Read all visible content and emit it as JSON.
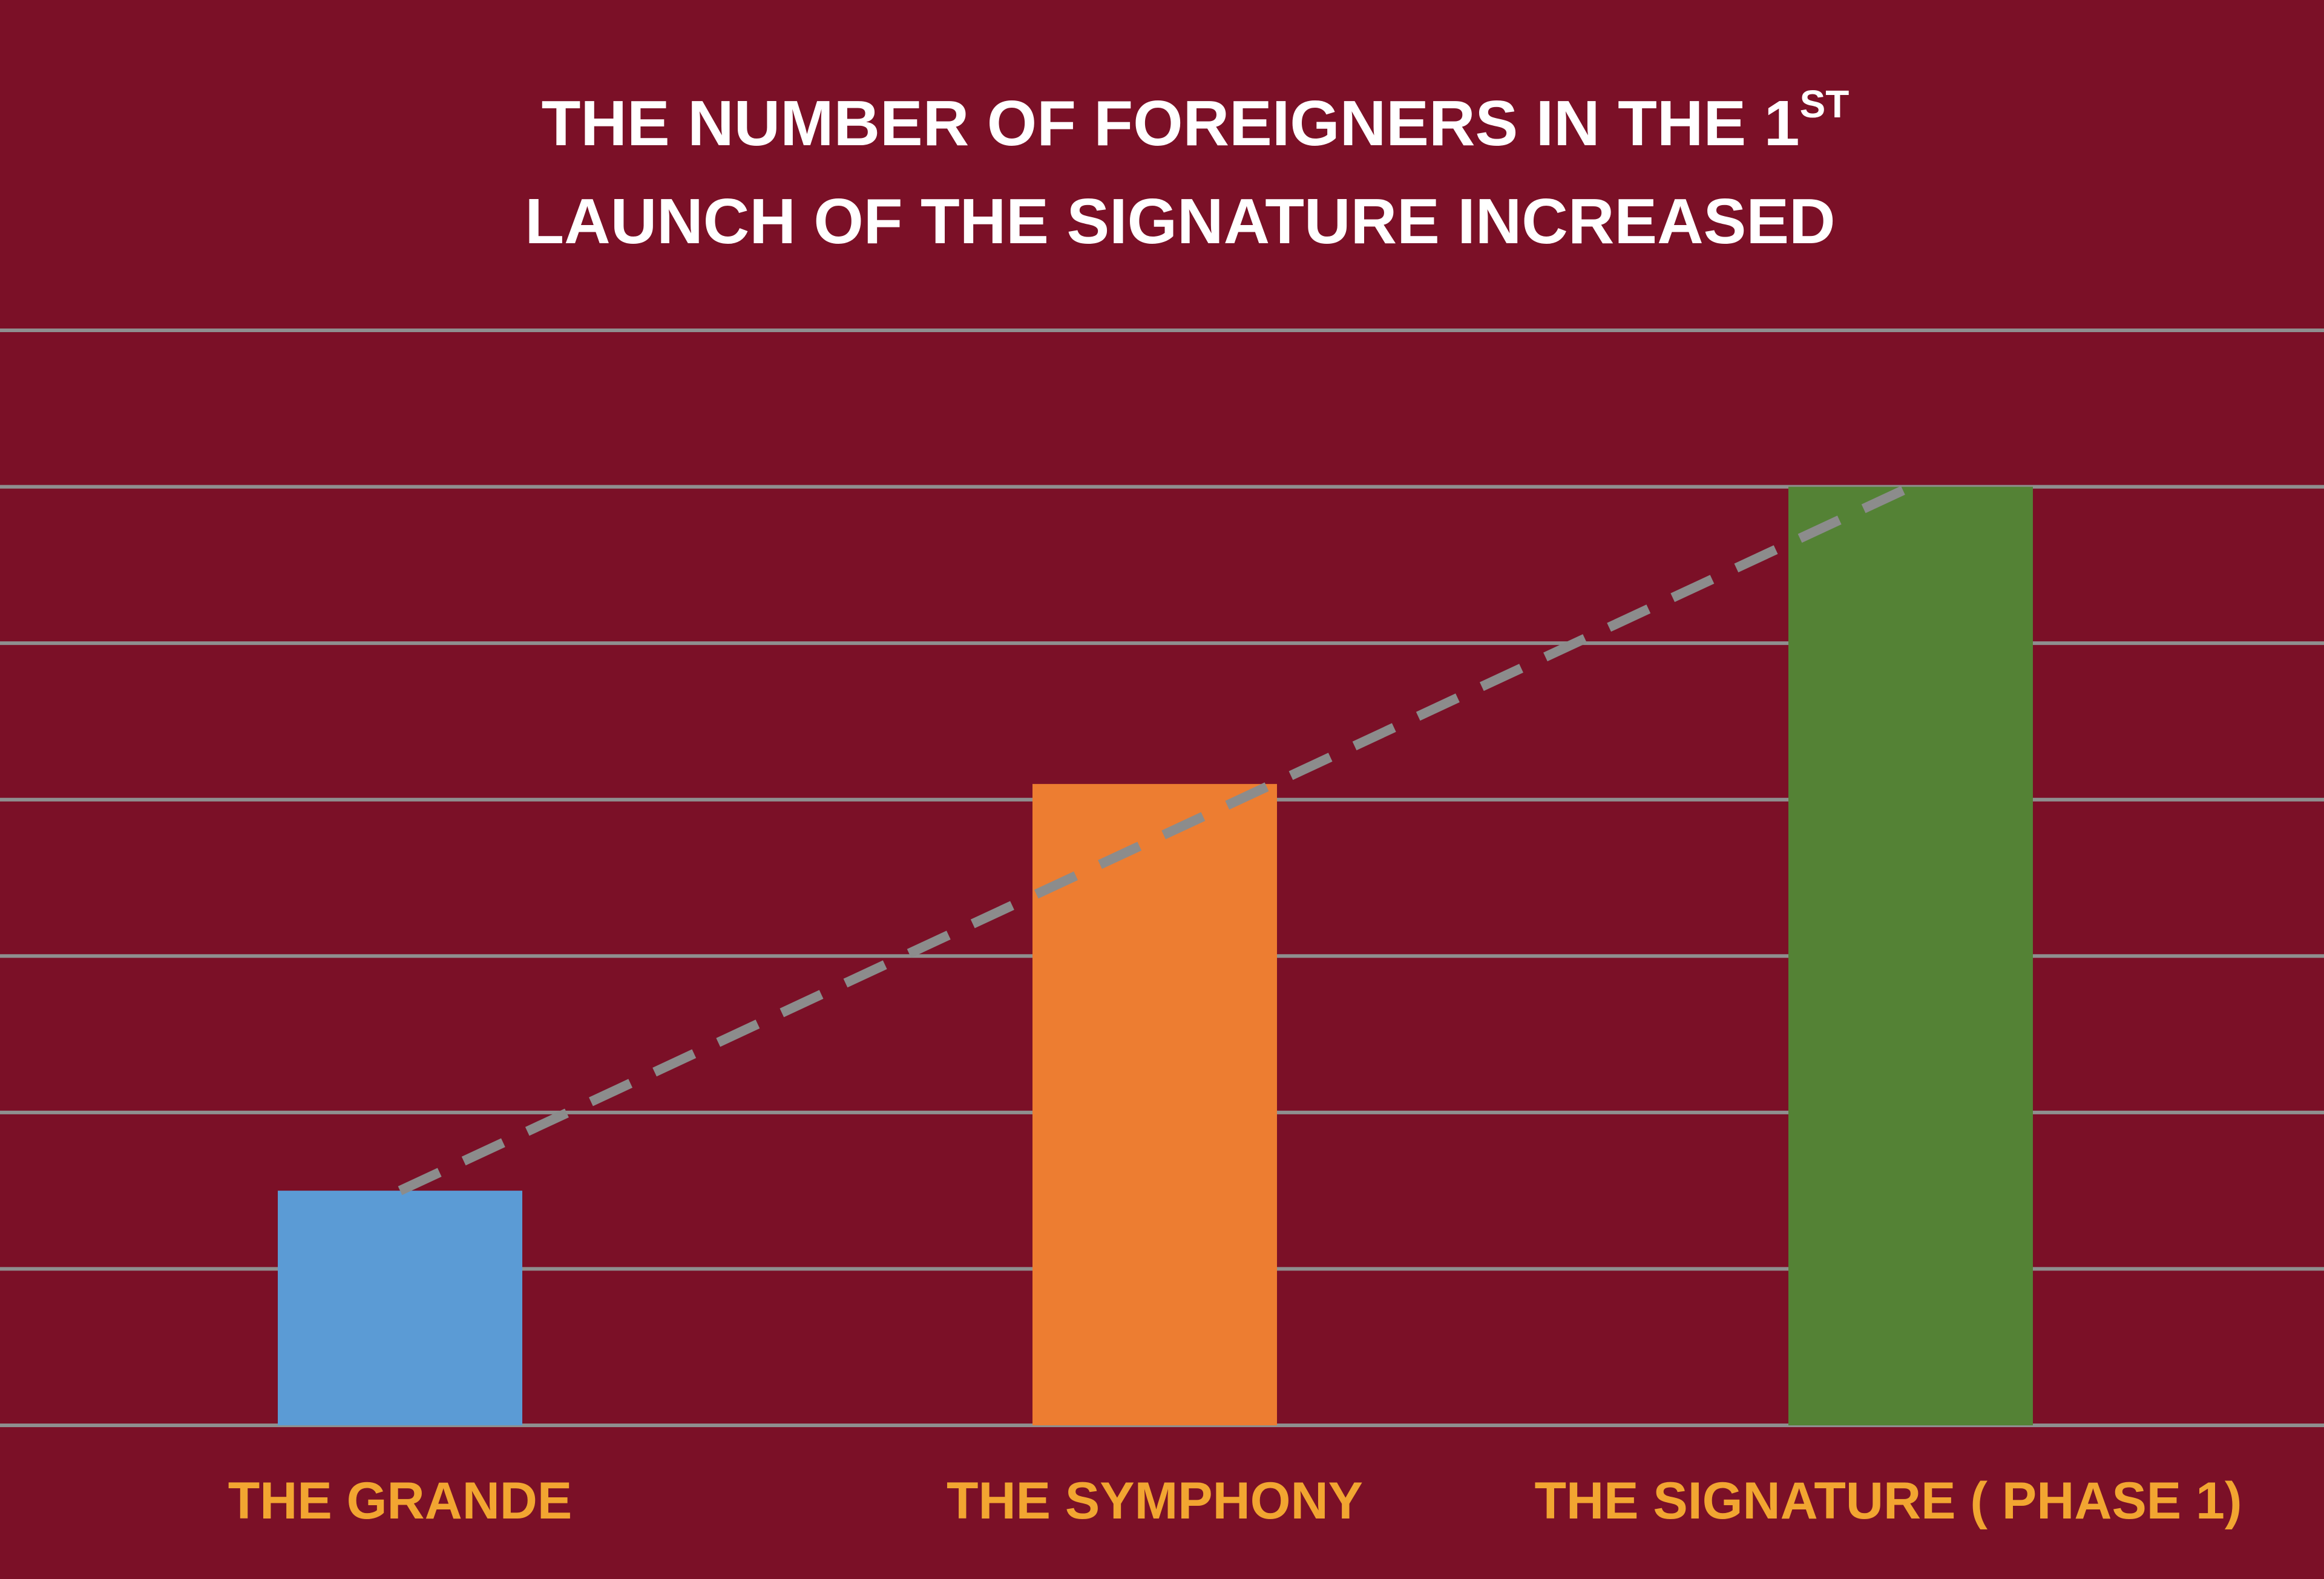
{
  "chart_data": {
    "type": "bar",
    "title": [
      "THE NUMBER OF FOREIGNERS IN THE 1",
      "ST",
      "LAUNCH OF THE SIGNATURE INCREASED"
    ],
    "categories": [
      "THE GRANDE",
      "THE SYMPHONY",
      "THE SIGNATURE ( PHASE 1)"
    ],
    "values": [
      1.5,
      4.1,
      6
    ],
    "colors": [
      "#5b9bd5",
      "#ed7d31",
      "#548235"
    ],
    "ylim": [
      0,
      7
    ],
    "yticks": [
      0,
      1,
      2,
      3,
      4,
      5,
      6,
      7
    ],
    "grid": true,
    "trend_line": {
      "color": "#8c8c8c",
      "dashed": true
    }
  }
}
